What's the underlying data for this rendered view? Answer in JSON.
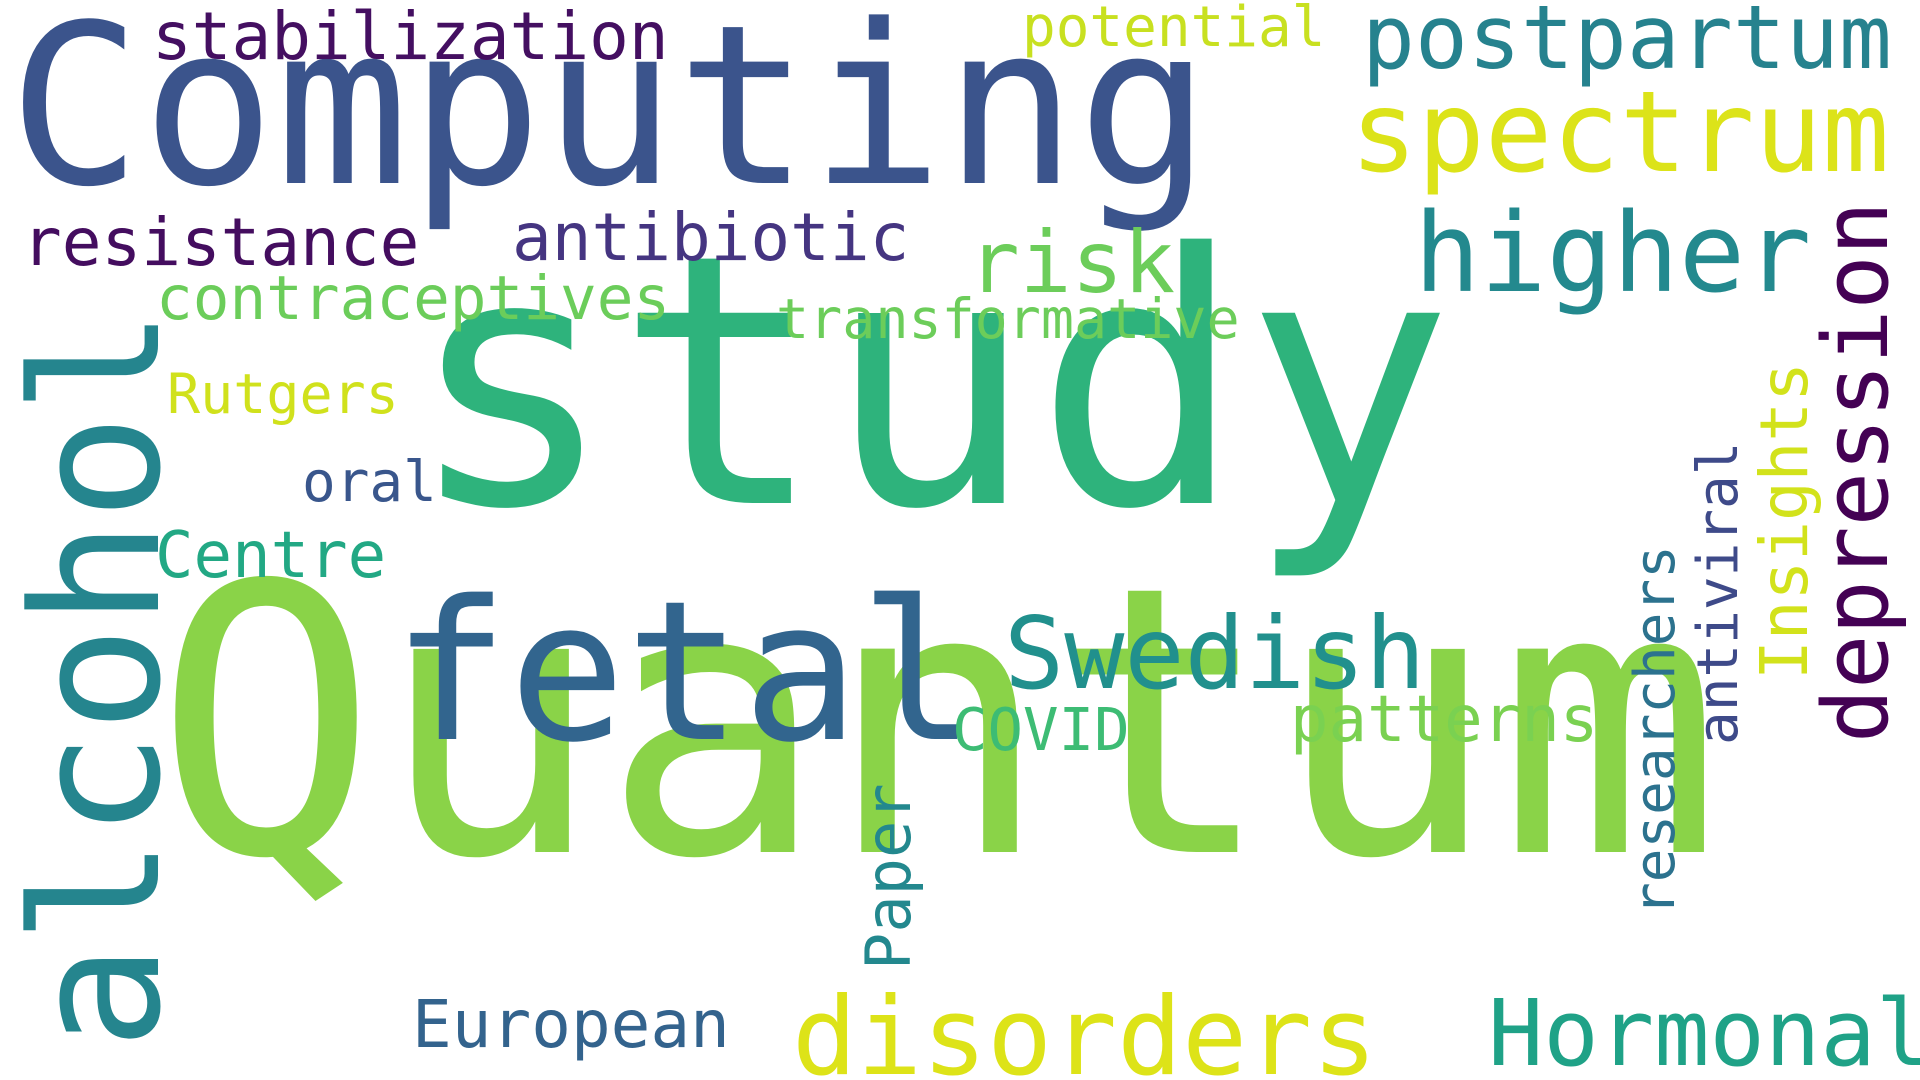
{
  "palette": {
    "dark_purple": "#440154",
    "indigo": "#3b528b",
    "slate_blue": "#31688e",
    "teal": "#21908c",
    "green": "#35b779",
    "light_green": "#6ece58",
    "lime": "#8fd744",
    "yellow": "#dde318"
  },
  "words": [
    {
      "key": "quantum",
      "text": "Quantum",
      "color": "#8ad348"
    },
    {
      "key": "study",
      "text": "study",
      "color": "#2eb37c"
    },
    {
      "key": "computing",
      "text": "Computing",
      "color": "#3b548c"
    },
    {
      "key": "alcohol",
      "text": "alcohol",
      "color": "#25858e"
    },
    {
      "key": "fetal",
      "text": "fetal",
      "color": "#32658e"
    },
    {
      "key": "spectrum",
      "text": "spectrum",
      "color": "#dce319"
    },
    {
      "key": "postpartum",
      "text": "postpartum",
      "color": "#26828e"
    },
    {
      "key": "higher",
      "text": "higher",
      "color": "#23898e"
    },
    {
      "key": "disorders",
      "text": "disorders",
      "color": "#dde318"
    },
    {
      "key": "swedish",
      "text": "Swedish",
      "color": "#21908d"
    },
    {
      "key": "hormonal",
      "text": "Hormonal",
      "color": "#1fa287"
    },
    {
      "key": "depression",
      "text": "depression",
      "color": "#440154"
    },
    {
      "key": "risk",
      "text": "risk",
      "color": "#6ccd5a"
    },
    {
      "key": "stabilization",
      "text": "stabilization",
      "color": "#440f61"
    },
    {
      "key": "potential",
      "text": "potential",
      "color": "#c8e020"
    },
    {
      "key": "resistance",
      "text": "resistance",
      "color": "#440d5f"
    },
    {
      "key": "antibiotic",
      "text": "antibiotic",
      "color": "#453581"
    },
    {
      "key": "contraceptives",
      "text": "contraceptives",
      "color": "#6bcd5a"
    },
    {
      "key": "transformative",
      "text": "transformative",
      "color": "#6ccd5a"
    },
    {
      "key": "rutgers",
      "text": "Rutgers",
      "color": "#d0e11c"
    },
    {
      "key": "oral",
      "text": "oral",
      "color": "#39568c"
    },
    {
      "key": "centre",
      "text": "Centre",
      "color": "#22a884"
    },
    {
      "key": "patterns",
      "text": "patterns",
      "color": "#7ad151"
    },
    {
      "key": "covid",
      "text": "COVID",
      "color": "#3dbc74"
    },
    {
      "key": "insights",
      "text": "Insights",
      "color": "#d2e21b"
    },
    {
      "key": "antiviral",
      "text": "antiviral",
      "color": "#3e4a89"
    },
    {
      "key": "researchers",
      "text": "researchers",
      "color": "#2c728e"
    },
    {
      "key": "paper",
      "text": "Paper",
      "color": "#23888e"
    },
    {
      "key": "european",
      "text": "European",
      "color": "#33638d"
    }
  ]
}
